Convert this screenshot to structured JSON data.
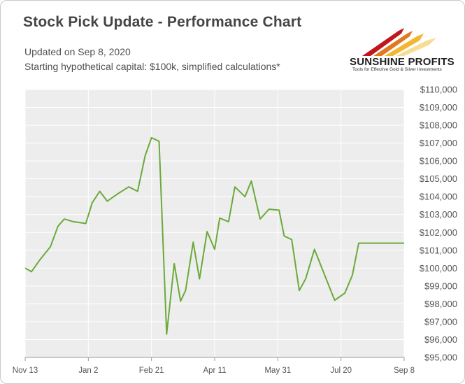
{
  "header": {
    "title": "Stock Pick Update - Performance Chart",
    "updated": "Updated on Sep 8, 2020",
    "note": "Starting hypothetical capital: $100k, simplified calculations*"
  },
  "logo": {
    "name": "SUNSHINE PROFITS",
    "tagline": "Tools for Effective Gold & Silver Investments",
    "colors": [
      "#c0161c",
      "#e07a22",
      "#f2b632",
      "#f6dd92"
    ]
  },
  "chart_data": {
    "type": "line",
    "title": "Stock Pick Update - Performance Chart",
    "xlabel": "",
    "ylabel": "",
    "ylim": [
      95000,
      110000
    ],
    "yticks": [
      95000,
      96000,
      97000,
      98000,
      99000,
      100000,
      101000,
      102000,
      103000,
      104000,
      105000,
      106000,
      107000,
      108000,
      109000,
      110000
    ],
    "ytick_labels": [
      "$95,000",
      "$96,000",
      "$97,000",
      "$98,000",
      "$99,000",
      "$100,000",
      "$101,000",
      "$102,000",
      "$103,000",
      "$104,000",
      "$105,000",
      "$106,000",
      "$107,000",
      "$108,000",
      "$109,000",
      "$110,000"
    ],
    "xlim": [
      "2019-11-13",
      "2020-09-08"
    ],
    "xticks": [
      {
        "date": "2019-11-13",
        "label": "Nov 13"
      },
      {
        "date": "2020-01-02",
        "label": "Jan 2"
      },
      {
        "date": "2020-02-21",
        "label": "Feb 21"
      },
      {
        "date": "2020-04-11",
        "label": "Apr 11"
      },
      {
        "date": "2020-05-31",
        "label": "May 31"
      },
      {
        "date": "2020-07-20",
        "label": "Jul 20"
      },
      {
        "date": "2020-09-08",
        "label": "Sep 8"
      }
    ],
    "grid": true,
    "line_color": "#6aaa3a",
    "plot_background": "#ededed",
    "series": [
      {
        "x": [
          "2019-11-13",
          "2019-11-18",
          "2019-11-25",
          "2019-12-03",
          "2019-12-09",
          "2019-12-14",
          "2019-12-21",
          "2019-12-31",
          "2020-01-05",
          "2020-01-11",
          "2020-01-17",
          "2020-01-25",
          "2020-02-03",
          "2020-02-10",
          "2020-02-16",
          "2020-02-21",
          "2020-02-27",
          "2020-03-04",
          "2020-03-10",
          "2020-03-15",
          "2020-03-19",
          "2020-03-25",
          "2020-03-30",
          "2020-04-05",
          "2020-04-11",
          "2020-04-15",
          "2020-04-22",
          "2020-04-27",
          "2020-05-05",
          "2020-05-10",
          "2020-05-17",
          "2020-05-24",
          "2020-06-01",
          "2020-06-05",
          "2020-06-11",
          "2020-06-17",
          "2020-06-22",
          "2020-06-29",
          "2020-07-15",
          "2020-07-23",
          "2020-07-29",
          "2020-08-03",
          "2020-08-08",
          "2020-08-13",
          "2020-08-18",
          "2020-08-24",
          "2020-09-01",
          "2020-09-08"
        ],
        "y": [
          100000,
          99800,
          100500,
          101200,
          102350,
          102750,
          102600,
          102500,
          103650,
          104300,
          103750,
          104150,
          104550,
          104300,
          106300,
          107300,
          107100,
          96300,
          100250,
          98150,
          98750,
          101450,
          99400,
          102050,
          101050,
          102800,
          102600,
          104550,
          104000,
          104880,
          102750,
          103300,
          103250,
          101800,
          101600,
          98750,
          99400,
          101050,
          98200,
          98600,
          99600,
          101400,
          101400,
          101400,
          101400,
          101400,
          101400,
          101400
        ]
      }
    ]
  }
}
